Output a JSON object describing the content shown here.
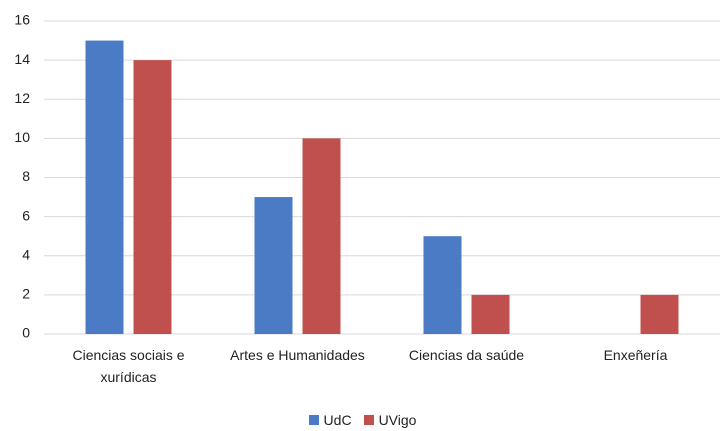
{
  "chart_data": {
    "type": "bar",
    "categories": [
      "Ciencias sociais e xurídicas",
      "Artes e Humanidades",
      "Ciencias da saúde",
      "Enxeñería"
    ],
    "series": [
      {
        "name": "UdC",
        "color": "#4a7bc4",
        "values": [
          15,
          7,
          5,
          0
        ]
      },
      {
        "name": "UVigo",
        "color": "#c0504d",
        "values": [
          14,
          10,
          2,
          2
        ]
      }
    ],
    "ylim": [
      0,
      16
    ],
    "yticks": [
      0,
      2,
      4,
      6,
      8,
      10,
      12,
      14,
      16
    ],
    "grid": true,
    "legend": "bottom"
  }
}
